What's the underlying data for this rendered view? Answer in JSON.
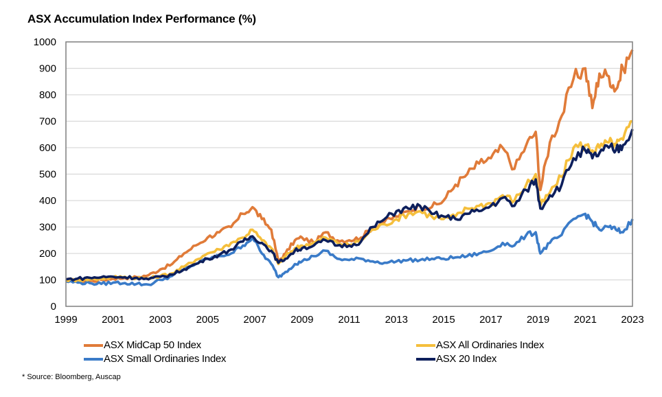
{
  "chart_data": {
    "type": "line",
    "title": "ASX Accumulation Index Performance (%)",
    "xlabel": "",
    "ylabel": "",
    "xlim": [
      1999,
      2023
    ],
    "ylim": [
      0,
      1000
    ],
    "x_ticks": [
      "1999",
      "2001",
      "2003",
      "2005",
      "2007",
      "2009",
      "2011",
      "2013",
      "2015",
      "2017",
      "2019",
      "2021",
      "2023"
    ],
    "y_ticks": [
      "0",
      "100",
      "200",
      "300",
      "400",
      "500",
      "600",
      "700",
      "800",
      "900",
      "1000"
    ],
    "grid": true,
    "legend_position": "bottom",
    "x": [
      1999.0,
      1999.5,
      2000.0,
      2000.5,
      2001.0,
      2001.5,
      2002.0,
      2002.5,
      2003.0,
      2003.5,
      2004.0,
      2004.5,
      2005.0,
      2005.5,
      2006.0,
      2006.5,
      2006.9,
      2007.3,
      2007.7,
      2008.0,
      2008.3,
      2008.7,
      2009.0,
      2009.5,
      2010.0,
      2010.5,
      2011.0,
      2011.5,
      2012.0,
      2012.5,
      2013.0,
      2013.5,
      2014.0,
      2014.5,
      2015.0,
      2015.5,
      2016.0,
      2016.5,
      2017.0,
      2017.5,
      2018.0,
      2018.5,
      2018.9,
      2019.1,
      2019.5,
      2020.0,
      2020.5,
      2021.0,
      2021.3,
      2021.6,
      2022.0,
      2022.3,
      2022.6,
      2023.0
    ],
    "series": [
      {
        "name": "ASX MidCap 50 Index",
        "color": "#E07B39",
        "values": [
          100,
          98,
          95,
          100,
          105,
          108,
          110,
          118,
          140,
          160,
          200,
          230,
          260,
          280,
          300,
          350,
          375,
          330,
          290,
          170,
          200,
          250,
          260,
          240,
          280,
          250,
          250,
          260,
          300,
          320,
          340,
          360,
          380,
          375,
          400,
          460,
          500,
          540,
          560,
          600,
          520,
          610,
          660,
          440,
          620,
          720,
          860,
          900,
          750,
          880,
          870,
          820,
          900,
          970
        ]
      },
      {
        "name": "ASX All Ordinaries Index",
        "color": "#F5BF3C",
        "values": [
          100,
          100,
          102,
          105,
          110,
          112,
          108,
          105,
          115,
          125,
          150,
          175,
          200,
          215,
          240,
          260,
          290,
          250,
          220,
          160,
          190,
          220,
          230,
          240,
          260,
          240,
          230,
          250,
          290,
          310,
          330,
          350,
          360,
          340,
          330,
          340,
          370,
          380,
          390,
          420,
          400,
          460,
          500,
          380,
          430,
          490,
          600,
          610,
          590,
          600,
          620,
          610,
          630,
          700
        ]
      },
      {
        "name": "ASX Small Ordinaries Index",
        "color": "#3A7BC8",
        "values": [
          95,
          90,
          88,
          85,
          90,
          88,
          85,
          82,
          100,
          115,
          140,
          160,
          180,
          190,
          200,
          230,
          260,
          200,
          160,
          110,
          130,
          160,
          170,
          190,
          210,
          180,
          175,
          180,
          170,
          165,
          170,
          175,
          175,
          180,
          180,
          185,
          190,
          200,
          210,
          240,
          230,
          270,
          280,
          200,
          240,
          270,
          330,
          350,
          320,
          290,
          300,
          290,
          280,
          330
        ]
      },
      {
        "name": "ASX 20 Index",
        "color": "#0D1F5C",
        "values": [
          102,
          105,
          108,
          110,
          112,
          110,
          108,
          102,
          112,
          120,
          140,
          160,
          180,
          195,
          215,
          245,
          265,
          240,
          210,
          165,
          180,
          210,
          220,
          230,
          250,
          230,
          230,
          245,
          300,
          330,
          360,
          370,
          380,
          350,
          340,
          330,
          350,
          360,
          380,
          410,
          380,
          440,
          480,
          370,
          420,
          460,
          560,
          590,
          560,
          580,
          600,
          590,
          610,
          670
        ]
      }
    ]
  },
  "source_note": "* Source: Bloomberg, Auscap"
}
